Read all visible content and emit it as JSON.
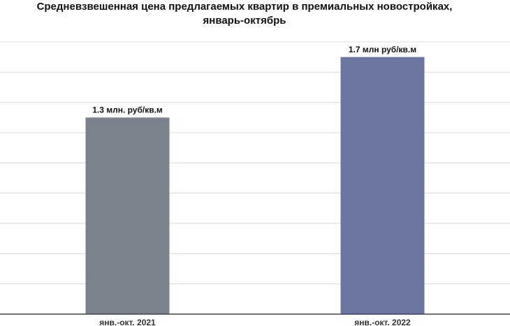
{
  "chart_data": {
    "type": "bar",
    "title": [
      "Средневзвешенная цена предлагаемых квартир в премиальных новостройках,",
      "январь-октябрь"
    ],
    "categories": [
      "янв.-окт. 2021",
      "янв.-окт. 2022"
    ],
    "values": [
      1.3,
      1.7
    ],
    "value_labels": [
      "1.3 млн. руб/кв.м",
      "1.7 млн руб/кв.м"
    ],
    "colors": [
      "#7b828c",
      "#6b77a1"
    ],
    "ylim": [
      0,
      1.8
    ],
    "yticks": [
      0,
      0.2,
      0.4,
      0.6,
      0.8,
      1,
      1.2,
      1.4,
      1.6,
      1.8
    ],
    "grid": true
  }
}
